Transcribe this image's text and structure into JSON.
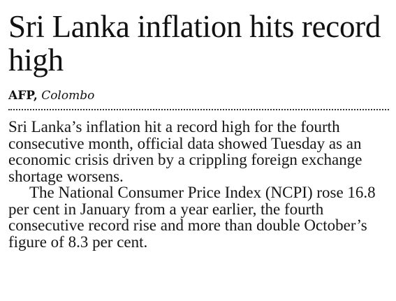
{
  "article": {
    "headline": "Sri Lanka inflation hits record high",
    "byline": {
      "agency": "AFP,",
      "place": "Colombo"
    },
    "paragraphs": [
      "Sri Lanka’s inflation hit a record high for the fourth consecutive month, official data showed Tuesday as an economic crisis driven by a crippling foreign exchange shortage worsens.",
      "The National Consumer Price Index (NCPI) rose 16.8 per cent in January from a year earlier, the fourth consecutive record rise and more than double October’s figure of 8.3 per cent."
    ]
  }
}
